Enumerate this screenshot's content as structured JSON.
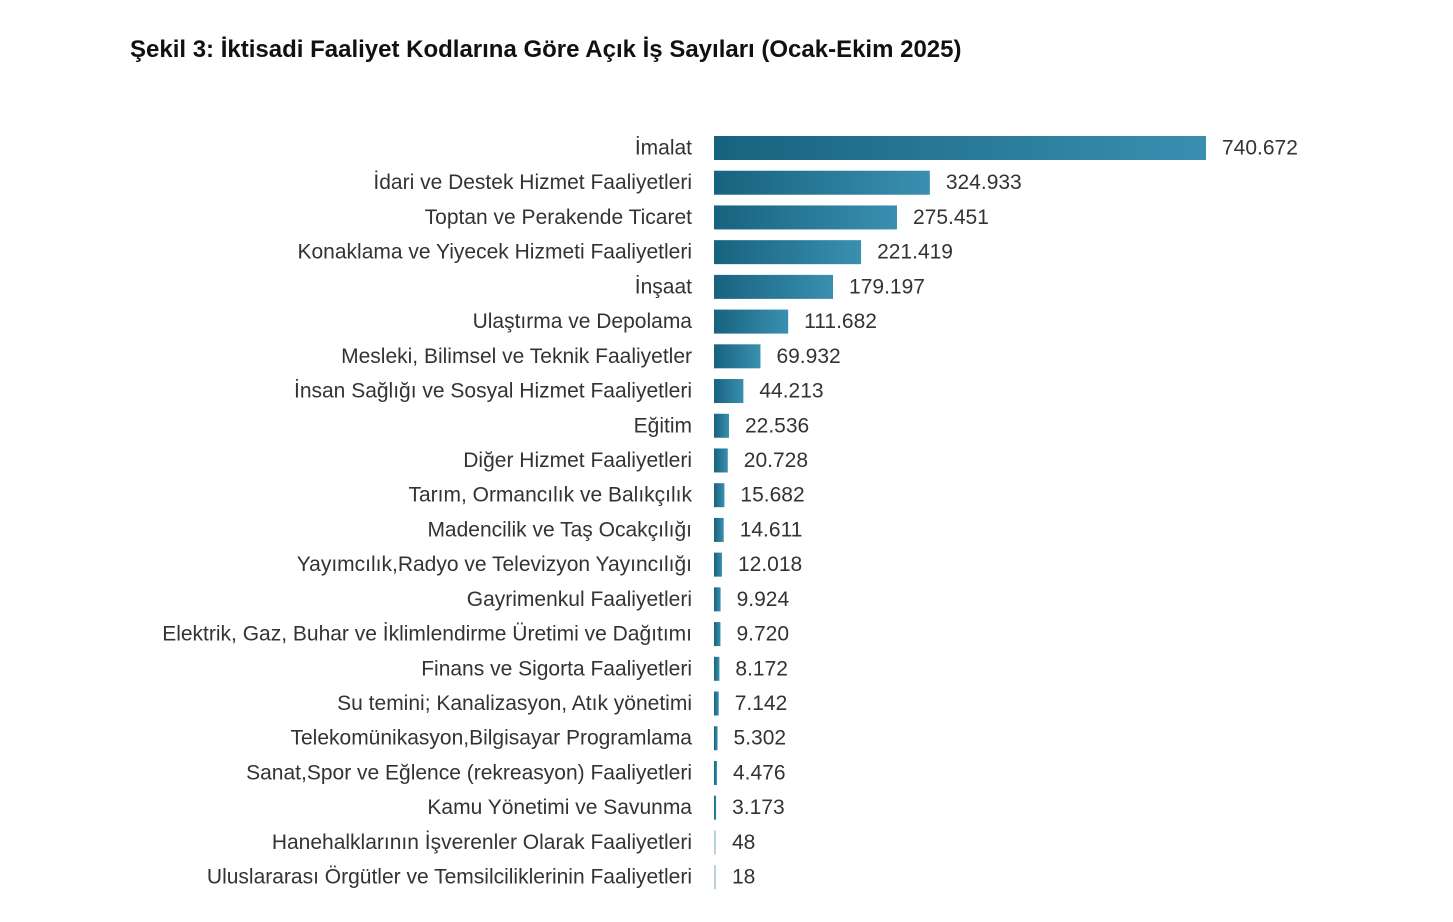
{
  "chart_data": {
    "type": "bar",
    "orientation": "horizontal",
    "title": "Şekil 3: İktisadi Faaliyet Kodlarına Göre Açık İş Sayıları (Ocak-Ekim 2025)",
    "xlabel": "",
    "ylabel": "",
    "grid": false,
    "legend": "none",
    "xlim": [
      0,
      740672
    ],
    "categories": [
      "İmalat",
      "İdari ve Destek Hizmet Faaliyetleri",
      "Toptan ve Perakende Ticaret",
      "Konaklama ve Yiyecek Hizmeti Faaliyetleri",
      "İnşaat",
      "Ulaştırma ve Depolama",
      "Mesleki, Bilimsel ve Teknik Faaliyetler",
      "İnsan Sağlığı ve Sosyal Hizmet Faaliyetleri",
      "Eğitim",
      "Diğer Hizmet Faaliyetleri",
      "Tarım, Ormancılık ve Balıkçılık",
      "Madencilik ve Taş Ocakçılığı",
      "Yayımcılık,Radyo ve Televizyon Yayıncılığı",
      "Gayrimenkul Faaliyetleri",
      "Elektrik, Gaz, Buhar ve İklimlendirme Üretimi ve Dağıtımı",
      "Finans ve Sigorta Faaliyetleri",
      "Su temini; Kanalizasyon, Atık yönetimi",
      "Telekomünikasyon,Bilgisayar Programlama",
      "Sanat,Spor ve Eğlence (rekreasyon) Faaliyetleri",
      "Kamu Yönetimi ve Savunma",
      "Hanehalklarının İşverenler Olarak Faaliyetleri",
      "Uluslararası Örgütler ve Temsilciliklerinin Faaliyetleri"
    ],
    "values": [
      740672,
      324933,
      275451,
      221419,
      179197,
      111682,
      69932,
      44213,
      22536,
      20728,
      15682,
      14611,
      12018,
      9924,
      9720,
      8172,
      7142,
      5302,
      4476,
      3173,
      48,
      18
    ],
    "value_labels": [
      "740.672",
      "324.933",
      "275.451",
      "221.419",
      "179.197",
      "111.682",
      "69.932",
      "44.213",
      "22.536",
      "20.728",
      "15.682",
      "14.611",
      "12.018",
      "9.924",
      "9.720",
      "8.172",
      "7.142",
      "5.302",
      "4.476",
      "3.173",
      "48",
      "18"
    ],
    "colors": {
      "bar_dark": "#17637f",
      "bar_light": "#3a8fb0",
      "bar_faint": "#b9d3de",
      "text": "#333333"
    }
  }
}
